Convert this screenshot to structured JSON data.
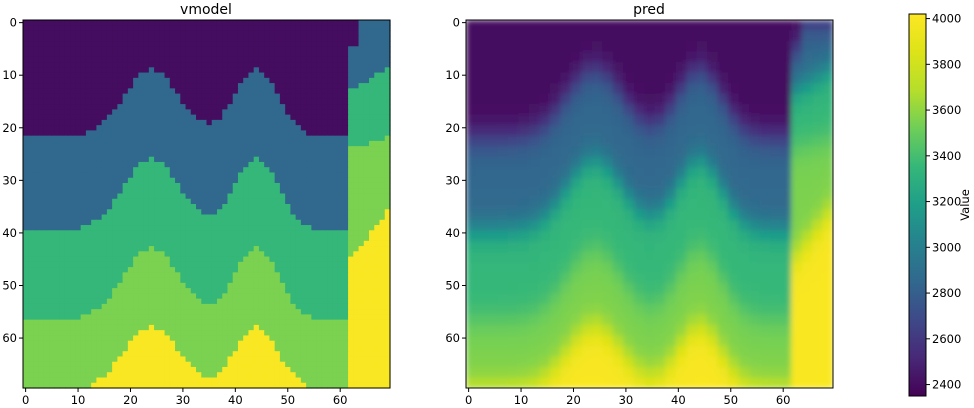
{
  "chart_data": [
    {
      "type": "heatmap",
      "title": "vmodel",
      "x_range": [
        0,
        69
      ],
      "y_range": [
        0,
        69
      ],
      "y_inverted": true,
      "xticks": [
        0,
        10,
        20,
        30,
        40,
        50,
        60
      ],
      "yticks": [
        0,
        10,
        20,
        30,
        40,
        50,
        60
      ],
      "layers": [
        {
          "name": "",
          "value": 2400
        },
        {
          "name": "",
          "value": 2850
        },
        {
          "name": "",
          "value": 3350
        },
        {
          "name": "",
          "value": 3550
        },
        {
          "name": "",
          "value": 4000
        }
      ],
      "description_values": "layered velocity model with sinusoidal interfaces; right side (x>58) has shallower layers"
    },
    {
      "type": "heatmap",
      "title": "pred",
      "x_range": [
        0,
        69
      ],
      "y_range": [
        0,
        69
      ],
      "y_inverted": true,
      "xticks": [
        0,
        10,
        20,
        30,
        40,
        50,
        60
      ],
      "yticks": [
        0,
        10,
        20,
        30,
        40,
        50,
        60
      ],
      "smoothed": true
    }
  ],
  "colorbar": {
    "label": "Value",
    "vmin": 2350,
    "vmax": 4020,
    "ticks": [
      2400,
      2600,
      2800,
      3000,
      3200,
      3400,
      3600,
      3800,
      4000
    ],
    "colormap": "viridis"
  }
}
